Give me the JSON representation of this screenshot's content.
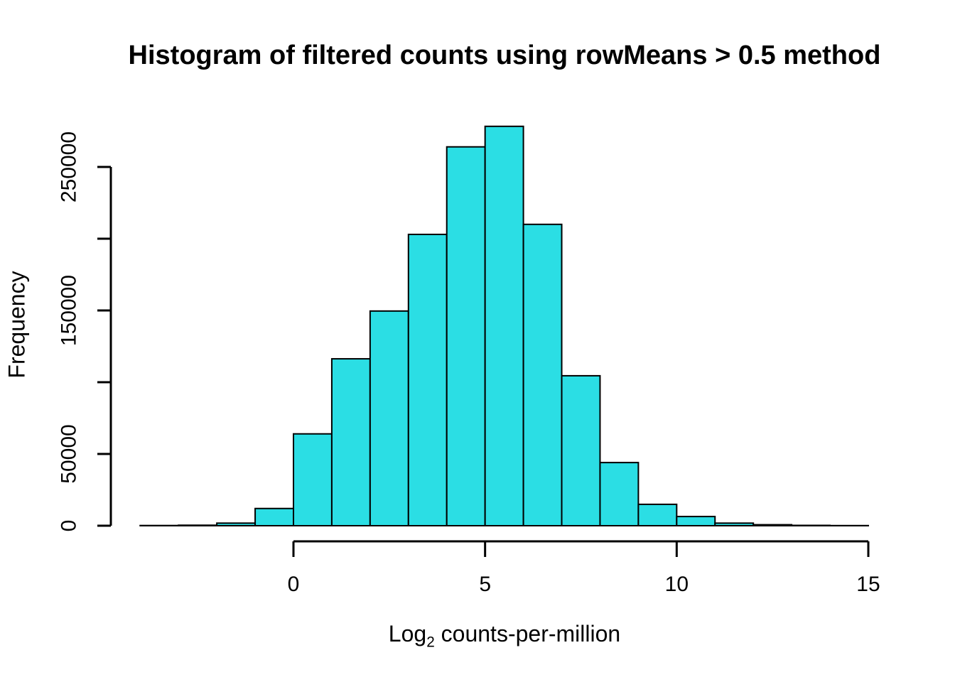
{
  "figure": {
    "background": "#FFFFFF"
  },
  "chart_data": {
    "type": "bar",
    "subtype": "histogram",
    "title": "Histogram of filtered counts using rowMeans > 0.5 method",
    "xlabel": "Log2 counts-per-million",
    "xlabel_parts": {
      "base": "Log",
      "sub": "2",
      "rest": " counts-per-million"
    },
    "ylabel": "Frequency",
    "bin_start": -4,
    "bin_width": 1,
    "frequencies": [
      150,
      350,
      1800,
      12000,
      64000,
      116300,
      149600,
      203000,
      264000,
      278300,
      210000,
      104500,
      44000,
      14900,
      6400,
      1800,
      700,
      250,
      100
    ],
    "x_ticks": [
      {
        "value": 0,
        "label": "0"
      },
      {
        "value": 5,
        "label": "5"
      },
      {
        "value": 10,
        "label": "10"
      },
      {
        "value": 15,
        "label": "15"
      }
    ],
    "y_ticks": [
      {
        "value": 0,
        "label": "0"
      },
      {
        "value": 50000,
        "label": "50000"
      },
      {
        "value": 100000,
        "label": ""
      },
      {
        "value": 150000,
        "label": "150000"
      },
      {
        "value": 200000,
        "label": ""
      },
      {
        "value": 250000,
        "label": "250000"
      }
    ],
    "xlim": [
      -4,
      15
    ],
    "ylim": [
      0,
      250000
    ],
    "grid": false,
    "colors": {
      "bar_fill": "#2BDEE4",
      "bar_stroke": "#000000",
      "axis": "#000000",
      "text": "#000000"
    }
  }
}
